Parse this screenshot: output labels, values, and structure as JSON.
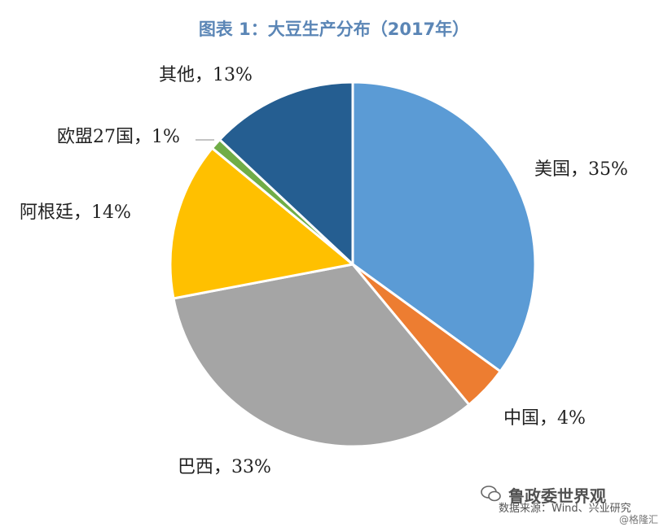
{
  "chart_data": {
    "type": "pie",
    "title": "图表 1：大豆生产分布（2017年）",
    "slices": [
      {
        "label": "美国，35%",
        "value": 35,
        "color": "#5b9bd5"
      },
      {
        "label": "中国，4%",
        "value": 4,
        "color": "#ed7d31"
      },
      {
        "label": "巴西，33%",
        "value": 33,
        "color": "#a5a5a5"
      },
      {
        "label": "阿根廷，14%",
        "value": 14,
        "color": "#ffc000"
      },
      {
        "label": "欧盟27国，1%",
        "value": 1,
        "color": "#70ad47"
      },
      {
        "label": "其他，13%",
        "value": 13,
        "color": "#255e91"
      }
    ]
  },
  "source": "数据来源：Wind、兴业研究",
  "watermark": "鲁政委世界观",
  "watermark_small": "@格隆汇"
}
